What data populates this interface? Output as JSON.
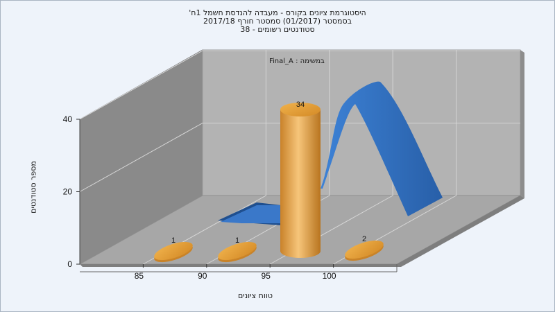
{
  "chart_data": {
    "type": "bar",
    "title_lines": [
      "היסטוגרמת ציונים בקורס - מעבדה להנדסת חשמל 1ח'",
      "בסמסטר (01/2017) סמסטר חורף 2017/18",
      "סטודנטים רשומים - 38"
    ],
    "series_caption": "במשימה : Final_A",
    "xlabel": "טווח ציונים",
    "ylabel": "מספר סטודנטים",
    "x_ticks": [
      85,
      90,
      95,
      100
    ],
    "y_ticks": [
      0,
      20,
      40
    ],
    "ylim": [
      0,
      40
    ],
    "categories": [
      "85-90",
      "90-95",
      "95-100",
      "100-105"
    ],
    "values": [
      1,
      1,
      34,
      2
    ],
    "value_labels": [
      "1",
      "1",
      "34",
      "2"
    ],
    "bar_color": "#e8a33a",
    "curve_color": "#2f6ec0",
    "grid": true
  }
}
